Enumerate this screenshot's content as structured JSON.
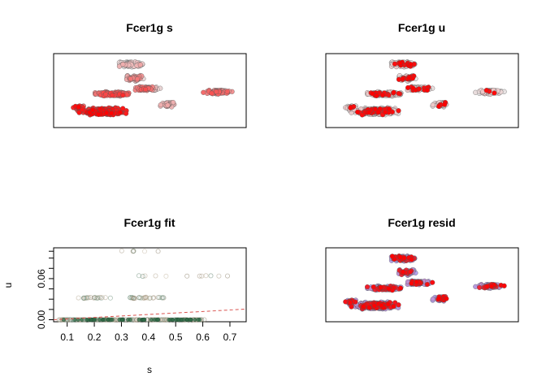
{
  "chart_data": [
    {
      "type": "scatter",
      "title": "Fcer1g s",
      "xlabel": "",
      "ylabel": "",
      "axes": false,
      "color_scale": [
        "#e8e8e8",
        "#ff0000"
      ]
    },
    {
      "type": "scatter",
      "title": "Fcer1g u",
      "xlabel": "",
      "ylabel": "",
      "axes": false,
      "color_scale": [
        "#e8e8e8",
        "#ff0000"
      ]
    },
    {
      "type": "scatter",
      "title": "Fcer1g fit",
      "xlabel": "s",
      "ylabel": "u",
      "xlim": [
        0.05,
        0.76
      ],
      "ylim": [
        -0.003,
        0.105
      ],
      "xticks": [
        0.1,
        0.2,
        0.3,
        0.4,
        0.5,
        0.6,
        0.7
      ],
      "xtick_labels": [
        "0.1",
        "0.2",
        "0.3",
        "0.4",
        "0.5",
        "0.6",
        "0.7"
      ],
      "yticks": [
        0.0,
        0.06
      ],
      "ytick_labels": [
        "0.00",
        "0.06"
      ],
      "yminor_ticks": [
        0.015,
        0.03,
        0.045,
        0.075,
        0.09,
        0.1
      ],
      "fit_line": {
        "x": [
          0.05,
          0.76
        ],
        "y": [
          0.0,
          0.0155
        ],
        "color": "#d9534f",
        "style": "dashed"
      },
      "point_groups": [
        {
          "u": 0.0,
          "s_range": [
            0.07,
            0.62
          ],
          "count": 170
        },
        {
          "u": 0.032,
          "s_range": [
            0.1,
            0.26
          ],
          "count": 22
        },
        {
          "u": 0.032,
          "s_range": [
            0.33,
            0.46
          ],
          "count": 30
        },
        {
          "u": 0.064,
          "s_range": [
            0.33,
            0.7
          ],
          "count": 12
        },
        {
          "u": 0.1,
          "s_range": [
            0.3,
            0.52
          ],
          "count": 6
        }
      ]
    },
    {
      "type": "scatter",
      "title": "Fcer1g resid",
      "xlabel": "",
      "ylabel": "",
      "axes": false,
      "color_scale": [
        "#b3a6f0",
        "#ff0000"
      ]
    }
  ]
}
